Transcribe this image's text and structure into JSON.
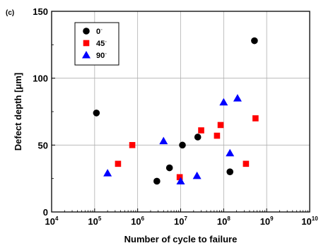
{
  "chart_data": {
    "type": "scatter",
    "panel_label": "(c)",
    "xlabel": "Number of cycle to failure",
    "ylabel": "Defect depth [μm]",
    "x_scale": "log",
    "xlim": [
      10000,
      10000000000
    ],
    "ylim": [
      0,
      150
    ],
    "x_ticks": [
      {
        "base": "10",
        "exp": "4",
        "value": 10000
      },
      {
        "base": "10",
        "exp": "5",
        "value": 100000
      },
      {
        "base": "10",
        "exp": "6",
        "value": 1000000
      },
      {
        "base": "10",
        "exp": "7",
        "value": 10000000
      },
      {
        "base": "10",
        "exp": "8",
        "value": 100000000
      },
      {
        "base": "10",
        "exp": "9",
        "value": 1000000000
      },
      {
        "base": "10",
        "exp": "10",
        "value": 10000000000
      }
    ],
    "y_ticks": [
      0,
      50,
      100,
      150
    ],
    "grid": true,
    "legend_position": "top-left",
    "series": [
      {
        "name": "0",
        "unit_mark": "◦",
        "marker": "circle",
        "color": "#000000",
        "points": [
          {
            "x": 110000,
            "y": 74
          },
          {
            "x": 2800000,
            "y": 23
          },
          {
            "x": 5500000,
            "y": 33
          },
          {
            "x": 11000000,
            "y": 50
          },
          {
            "x": 25000000,
            "y": 56
          },
          {
            "x": 140000000,
            "y": 30
          },
          {
            "x": 520000000,
            "y": 128
          }
        ]
      },
      {
        "name": "45",
        "unit_mark": "◦",
        "marker": "square",
        "color": "#ff0000",
        "points": [
          {
            "x": 350000,
            "y": 36
          },
          {
            "x": 750000,
            "y": 50
          },
          {
            "x": 9500000,
            "y": 26
          },
          {
            "x": 30000000,
            "y": 61
          },
          {
            "x": 70000000,
            "y": 57
          },
          {
            "x": 85000000,
            "y": 65
          },
          {
            "x": 330000000,
            "y": 36
          },
          {
            "x": 550000000,
            "y": 70
          }
        ]
      },
      {
        "name": "90",
        "unit_mark": "◦",
        "marker": "triangle",
        "color": "#0000ff",
        "points": [
          {
            "x": 200000,
            "y": 29
          },
          {
            "x": 4000000,
            "y": 53
          },
          {
            "x": 10000000,
            "y": 23
          },
          {
            "x": 24000000,
            "y": 27
          },
          {
            "x": 100000000,
            "y": 82
          },
          {
            "x": 140000000,
            "y": 44
          },
          {
            "x": 210000000,
            "y": 85
          }
        ]
      }
    ]
  }
}
